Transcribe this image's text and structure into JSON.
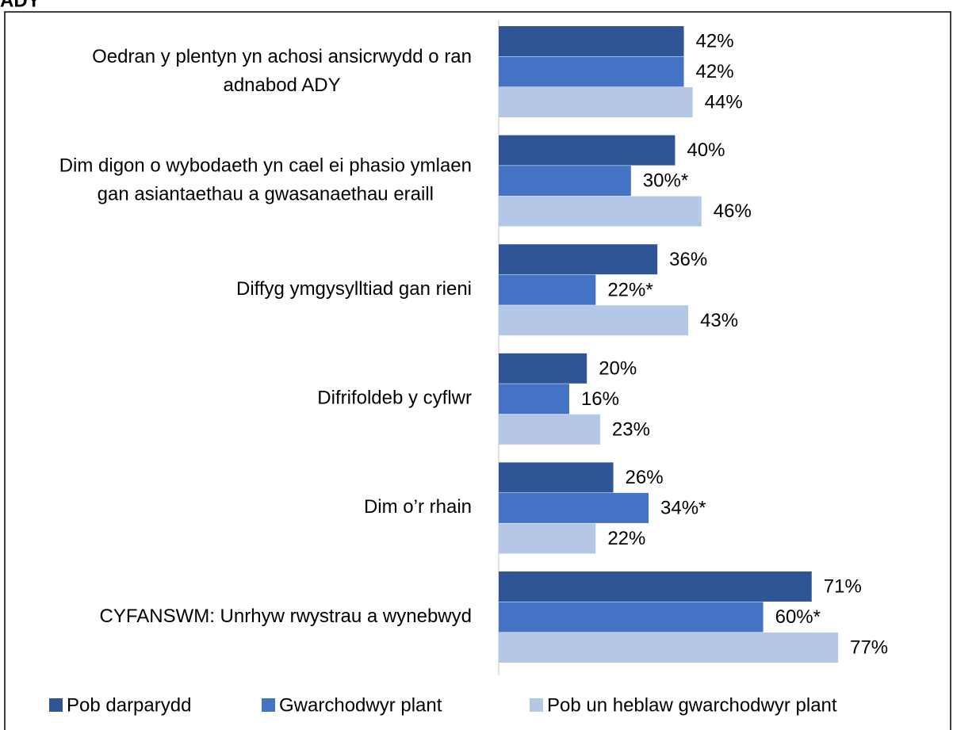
{
  "chart_data": {
    "type": "hbar",
    "title": "ADY",
    "categories": [
      "Oedran y plentyn yn achosi ansicrwydd o ran adnabod ADY",
      "Dim digon o wybodaeth yn cael ei phasio ymlaen gan asiantaethau a gwasanaethau eraill",
      "Diffyg ymgysylltiad gan rieni",
      "Difrifoldeb y cyflwr",
      "Dim o’r rhain",
      "CYFANSWM: Unrhyw rwystrau a wynebwyd"
    ],
    "series": [
      {
        "name": "Pob darparydd",
        "color": "#2f5597",
        "values": [
          42,
          40,
          36,
          20,
          26,
          71
        ],
        "value_labels": [
          "42%",
          "40%",
          "36%",
          "20%",
          "26%",
          "71%"
        ]
      },
      {
        "name": "Gwarchodwyr plant",
        "color": "#4472c4",
        "values": [
          42,
          30,
          22,
          16,
          34,
          60
        ],
        "value_labels": [
          "42%",
          "30%*",
          "22%*",
          "16%",
          "34%*",
          "60%*"
        ]
      },
      {
        "name": "Pob un heblaw gwarchodwyr plant",
        "color": "#b4c7e7",
        "values": [
          44,
          46,
          43,
          23,
          22,
          77
        ],
        "value_labels": [
          "44%",
          "46%",
          "43%",
          "23%",
          "22%",
          "77%"
        ]
      }
    ],
    "xlim": [
      0,
      100
    ],
    "legend": "bottom"
  }
}
